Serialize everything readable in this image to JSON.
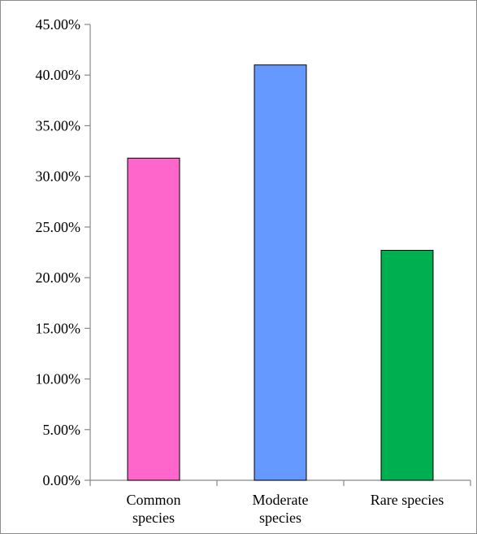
{
  "chart_data": {
    "type": "bar",
    "categories": [
      [
        "Common",
        "species"
      ],
      [
        "Moderate",
        "species"
      ],
      [
        "Rare species"
      ]
    ],
    "values": [
      0.318,
      0.41,
      0.227
    ],
    "colors": [
      "#ff66cc",
      "#6699ff",
      "#00b050"
    ],
    "ylim": [
      0,
      0.45
    ],
    "yticks": [
      0,
      0.05,
      0.1,
      0.15,
      0.2,
      0.25,
      0.3,
      0.35,
      0.4,
      0.45
    ],
    "ytick_labels": [
      "0.00%",
      "5.00%",
      "10.00%",
      "15.00%",
      "20.00%",
      "25.00%",
      "30.00%",
      "35.00%",
      "40.00%",
      "45.00%"
    ],
    "grid": false,
    "legend": "none",
    "title": "",
    "xlabel": "",
    "ylabel": ""
  }
}
